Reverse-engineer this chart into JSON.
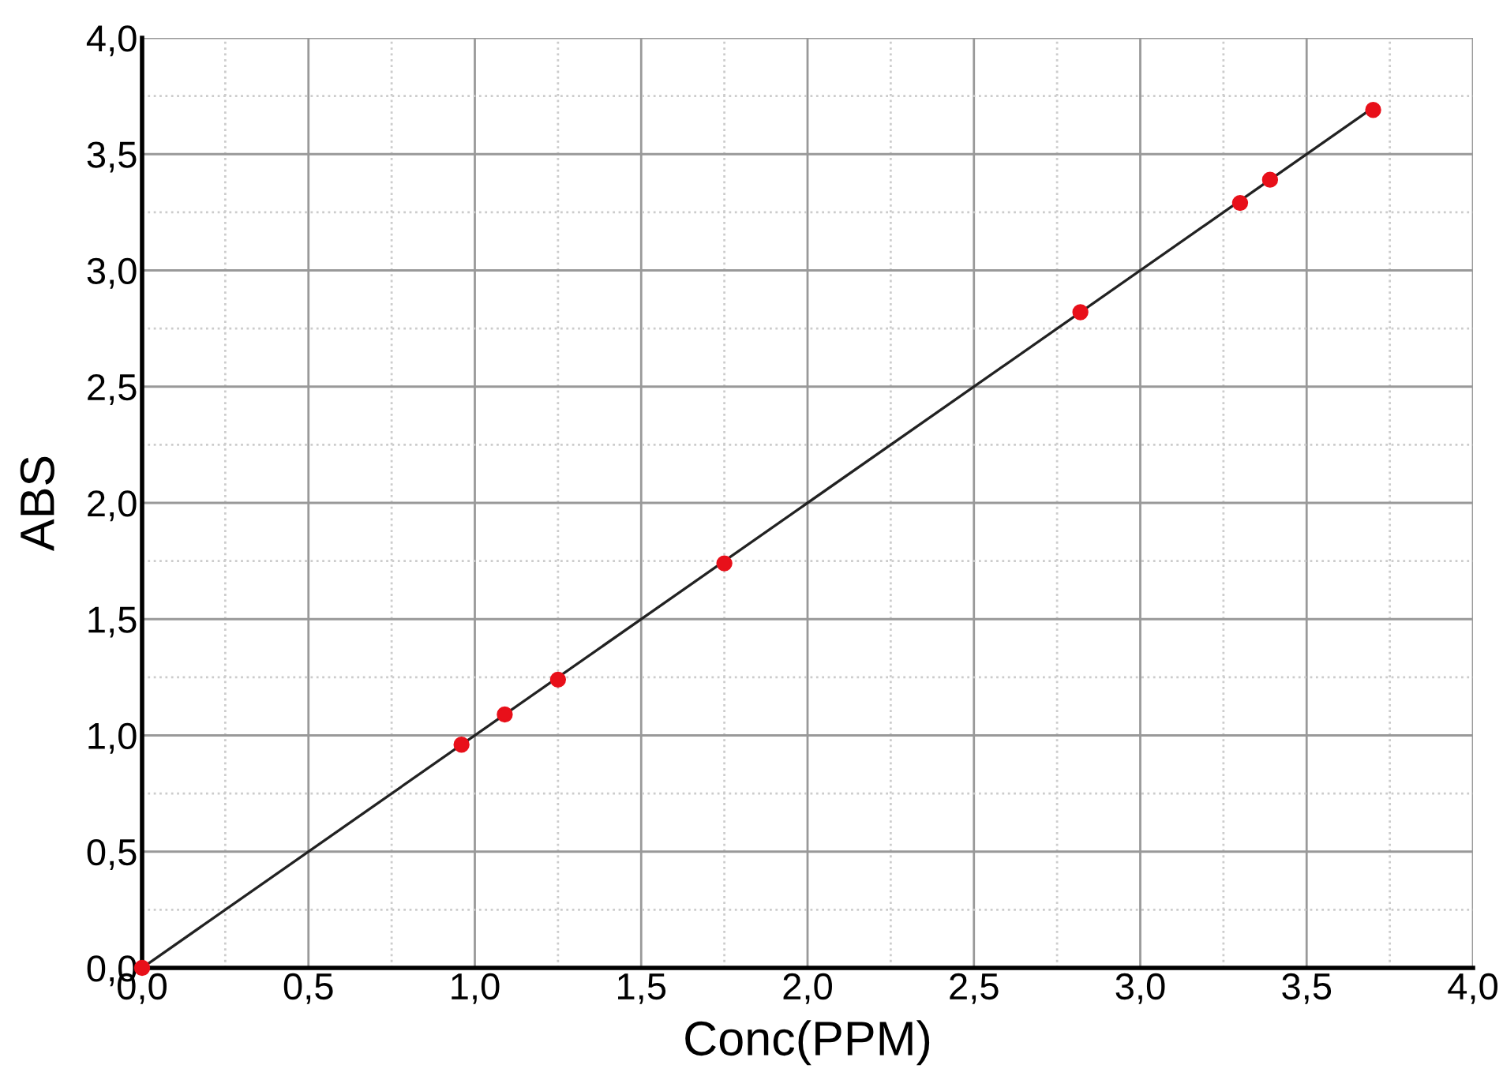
{
  "chart_data": {
    "type": "scatter",
    "xlabel": "Conc(PPM)",
    "ylabel": "ABS",
    "xlim": [
      0,
      4.0
    ],
    "ylim": [
      0,
      4.0
    ],
    "xticks": [
      {
        "value": 0,
        "label": "0,0"
      },
      {
        "value": 0.5,
        "label": "0,5"
      },
      {
        "value": 1.0,
        "label": "1,0"
      },
      {
        "value": 1.5,
        "label": "1,5"
      },
      {
        "value": 2.0,
        "label": "2,0"
      },
      {
        "value": 2.5,
        "label": "2,5"
      },
      {
        "value": 3.0,
        "label": "3,0"
      },
      {
        "value": 3.5,
        "label": "3,5"
      },
      {
        "value": 4.0,
        "label": "4,0"
      }
    ],
    "yticks": [
      {
        "value": 0,
        "label": "0,0"
      },
      {
        "value": 0.5,
        "label": "0,5"
      },
      {
        "value": 1.0,
        "label": "1,0"
      },
      {
        "value": 1.5,
        "label": "1,5"
      },
      {
        "value": 2.0,
        "label": "2,0"
      },
      {
        "value": 2.5,
        "label": "2,5"
      },
      {
        "value": 3.0,
        "label": "3,0"
      },
      {
        "value": 3.5,
        "label": "3,5"
      },
      {
        "value": 4.0,
        "label": "4,0"
      }
    ],
    "grid": true,
    "marker": "circle",
    "series": [
      {
        "type": "line",
        "color": "#222222",
        "x": [
          0,
          3.7
        ],
        "values": [
          0,
          3.7
        ],
        "marker": "none",
        "line_style": "solid"
      },
      {
        "color": "#e8101a",
        "x": [
          0,
          0.96,
          1.09,
          1.25,
          1.75,
          2.82,
          3.3,
          3.39,
          3.7
        ],
        "values": [
          0,
          0.96,
          1.09,
          1.24,
          1.74,
          2.82,
          3.29,
          3.39,
          3.69
        ]
      }
    ]
  }
}
